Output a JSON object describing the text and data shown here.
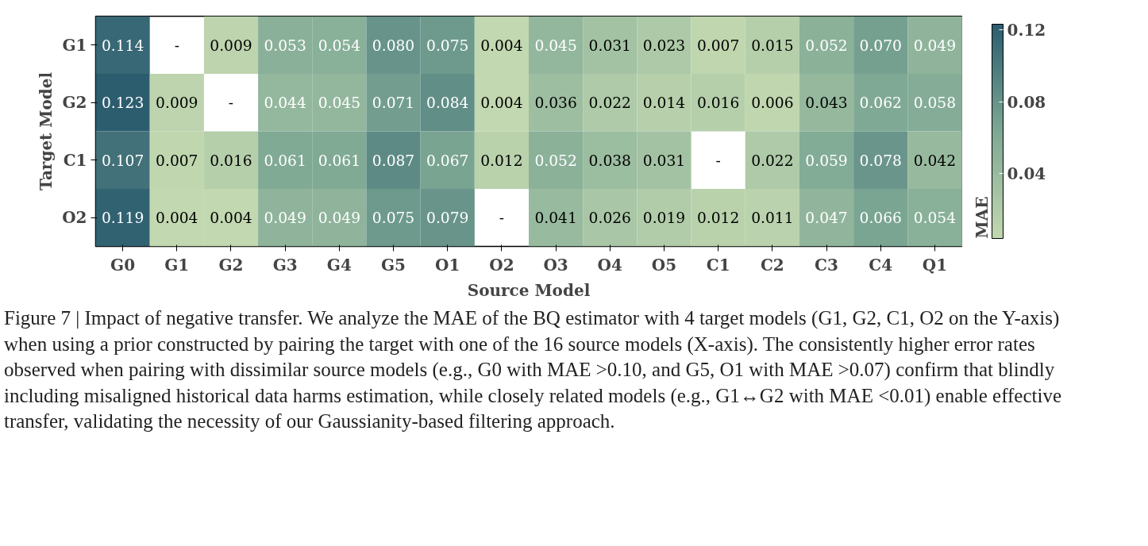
{
  "chart_data": {
    "type": "heatmap",
    "xlabel": "Source Model",
    "ylabel": "Target Model",
    "clabel": "MAE",
    "categories": [
      "G0",
      "G1",
      "G2",
      "G3",
      "G4",
      "G5",
      "O1",
      "O2",
      "O3",
      "O4",
      "O5",
      "C1",
      "C2",
      "C3",
      "C4",
      "Q1"
    ],
    "y_categories": [
      "G1",
      "G2",
      "C1",
      "O2"
    ],
    "cells": [
      [
        0.114,
        null,
        0.009,
        0.053,
        0.054,
        0.08,
        0.075,
        0.004,
        0.045,
        0.031,
        0.023,
        0.007,
        0.015,
        0.052,
        0.07,
        0.049
      ],
      [
        0.123,
        0.009,
        null,
        0.044,
        0.045,
        0.071,
        0.084,
        0.004,
        0.036,
        0.022,
        0.014,
        0.016,
        0.006,
        0.043,
        0.062,
        0.058
      ],
      [
        0.107,
        0.007,
        0.016,
        0.061,
        0.061,
        0.087,
        0.067,
        0.012,
        0.052,
        0.038,
        0.031,
        null,
        0.022,
        0.059,
        0.078,
        0.042
      ],
      [
        0.119,
        0.004,
        0.004,
        0.049,
        0.049,
        0.075,
        0.079,
        null,
        0.041,
        0.026,
        0.019,
        0.012,
        0.011,
        0.047,
        0.066,
        0.054
      ]
    ],
    "cell_labels": [
      [
        "0.114",
        "-",
        "0.009",
        "0.053",
        "0.054",
        "0.080",
        "0.075",
        "0.004",
        "0.045",
        "0.031",
        "0.023",
        "0.007",
        "0.015",
        "0.052",
        "0.070",
        "0.049"
      ],
      [
        "0.123",
        "0.009",
        "-",
        "0.044",
        "0.045",
        "0.071",
        "0.084",
        "0.004",
        "0.036",
        "0.022",
        "0.014",
        "0.016",
        "0.006",
        "0.043",
        "0.062",
        "0.058"
      ],
      [
        "0.107",
        "0.007",
        "0.016",
        "0.061",
        "0.061",
        "0.087",
        "0.067",
        "0.012",
        "0.052",
        "0.038",
        "0.031",
        "-",
        "0.022",
        "0.059",
        "0.078",
        "0.042"
      ],
      [
        "0.119",
        "0.004",
        "0.004",
        "0.049",
        "0.049",
        "0.075",
        "0.079",
        "-",
        "0.041",
        "0.026",
        "0.019",
        "0.012",
        "0.011",
        "0.047",
        "0.066",
        "0.054"
      ]
    ],
    "clim": [
      0.004,
      0.123
    ],
    "cticks": [
      0.04,
      0.08,
      0.12
    ],
    "colors": [
      "#c2d8b0",
      "#7ea894",
      "#2c5d6f"
    ],
    "annotations": [
      "Figure 7 | Impact of negative transfer. We analyze the MAE of the BQ estimator with 4 target models (G1, G2, C1, O2 on the Y-axis) when using a prior constructed by pairing the target with one of the 16 source models (X-axis). The consistently higher error rates observed when pairing with dissimilar source models (e.g., G0 with MAE >0.10, and G5, O1 with MAE >0.07) confirm that blindly including misaligned historical data harms estimation, while closely related models (e.g., G1↔G2 with MAE <0.01) enable effective transfer, validating the necessity of our Gaussianity-based filtering approach."
    ]
  }
}
